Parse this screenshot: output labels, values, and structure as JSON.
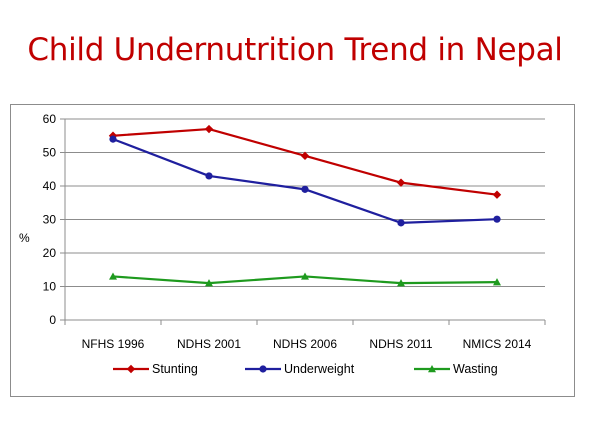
{
  "slide": {
    "title": "Child Undernutrition Trend in Nepal"
  },
  "chart_data": {
    "type": "line",
    "title": "Child Undernutrition Trend in Nepal",
    "ylabel": "%",
    "xlabel": "",
    "categories": [
      "NFHS 1996",
      "NDHS 2001",
      "NDHS 2006",
      "NDHS 2011",
      "NMICS 2014"
    ],
    "ylim": [
      0,
      60
    ],
    "yticks": [
      0,
      10,
      20,
      30,
      40,
      50,
      60
    ],
    "grid": true,
    "legend_position": "bottom",
    "series": [
      {
        "name": "Stunting",
        "values": [
          55,
          57,
          49,
          41,
          37.4
        ],
        "color": "#c00000",
        "marker": "diamond"
      },
      {
        "name": "Underweight",
        "values": [
          54,
          43,
          39,
          29,
          30.1
        ],
        "color": "#1f1f9e",
        "marker": "circle"
      },
      {
        "name": "Wasting",
        "values": [
          13,
          11,
          13,
          11,
          11.3
        ],
        "color": "#1e9a1e",
        "marker": "triangle"
      }
    ]
  }
}
